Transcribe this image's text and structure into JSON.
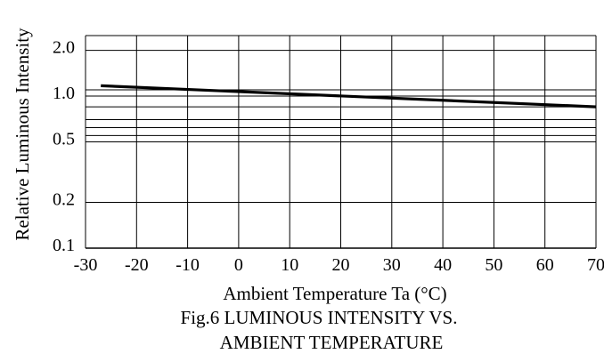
{
  "chart_data": {
    "type": "line",
    "title": "Fig.6 LUMINOUS INTENSITY VS.",
    "title_line2": "AMBIENT TEMPERATURE",
    "xlabel": "Ambient Temperature Ta (°C)",
    "ylabel": "Relative Luminous Intensity",
    "x_scale": "linear",
    "y_scale": "log",
    "xlim": [
      -30,
      70
    ],
    "ylim": [
      0.1,
      2.5
    ],
    "grid": true,
    "x_ticks": [
      -30,
      -20,
      -10,
      0,
      10,
      20,
      30,
      40,
      50,
      60,
      70
    ],
    "x_tick_labels": [
      "-30",
      "-20",
      "-10",
      "0",
      "10",
      "20",
      "30",
      "40",
      "50",
      "60",
      "70"
    ],
    "y_ticks": [
      0.1,
      0.2,
      0.5,
      1.0,
      2.0
    ],
    "y_tick_labels": [
      "0.1",
      "0.2",
      "0.5",
      "1.0",
      "2.0"
    ],
    "y_gridlines": [
      0.1,
      0.2,
      0.5,
      0.55,
      0.62,
      0.7,
      0.85,
      1.0,
      1.1,
      2.0,
      2.5
    ],
    "series": [
      {
        "x": [
          -27,
          70
        ],
        "y": [
          1.17,
          0.85
        ]
      }
    ]
  }
}
